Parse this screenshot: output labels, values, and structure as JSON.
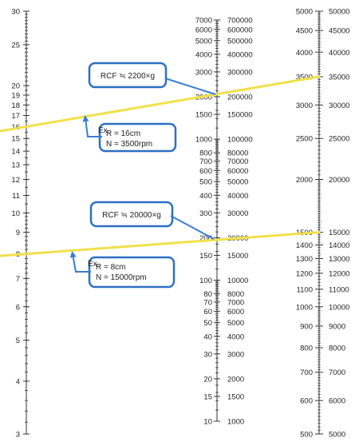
{
  "scale_radius": {
    "labels": [
      "30",
      "25",
      "20",
      "19",
      "18",
      "17",
      "16",
      "15",
      "14",
      "13",
      "12",
      "11",
      "10",
      "9",
      "8",
      "7",
      "6",
      "5",
      "4",
      "3"
    ],
    "values": [
      30,
      25,
      20,
      19,
      18,
      17,
      16,
      15,
      14,
      13,
      12,
      11,
      10,
      9,
      8,
      7,
      6,
      5,
      4,
      3
    ]
  },
  "scale_rcf": {
    "left_labels": [
      "7000",
      "6000",
      "5000",
      "4000",
      "3000",
      "2000",
      "1500",
      "1000",
      "800",
      "700",
      "600",
      "500",
      "400",
      "300",
      "200",
      "150",
      "100",
      "80",
      "70",
      "60",
      "50",
      "40",
      "30",
      "20",
      "15",
      "10"
    ],
    "right_labels": [
      "700000",
      "600000",
      "500000",
      "400000",
      "300000",
      "200000",
      "150000",
      "100000",
      "80000",
      "70000",
      "60000",
      "50000",
      "40000",
      "30000",
      "20000",
      "15000",
      "10000",
      "8000",
      "7000",
      "6000",
      "5000",
      "4000",
      "3000",
      "2000",
      "1500",
      "1000"
    ],
    "values": [
      7000,
      6000,
      5000,
      4000,
      3000,
      2000,
      1500,
      1000,
      800,
      700,
      600,
      500,
      400,
      300,
      200,
      150,
      100,
      80,
      70,
      60,
      50,
      40,
      30,
      20,
      15,
      10
    ]
  },
  "scale_rpm": {
    "left_labels": [
      "5000",
      "4500",
      "4000",
      "3500",
      "3000",
      "2500",
      "2000",
      "1500",
      "1400",
      "1300",
      "1200",
      "1100",
      "1000",
      "900",
      "800",
      "700",
      "600",
      "500"
    ],
    "left_values": [
      5000,
      4500,
      4000,
      3500,
      3000,
      2500,
      2000,
      1500,
      1400,
      1300,
      1200,
      1100,
      1000,
      900,
      800,
      700,
      600,
      500
    ],
    "right_labels": [
      "50000",
      "45000",
      "40000",
      "35000",
      "30000",
      "25000",
      "20000",
      "15000",
      "14000",
      "13000",
      "12000",
      "11000",
      "10000",
      "9000",
      "8000",
      "7000",
      "6000",
      "5000"
    ],
    "right_values": [
      50000,
      45000,
      40000,
      35000,
      30000,
      25000,
      20000,
      15000,
      14000,
      13000,
      12000,
      11000,
      10000,
      9000,
      8000,
      7000,
      6000,
      5000
    ]
  },
  "examples": [
    {
      "result": "RCF ≒ 2200×g",
      "ex_tag": "Ex.",
      "radius_text": "R = 16cm",
      "speed_text": "N = 3500rpm",
      "radius": 16,
      "rcf_low": 2200,
      "rpm_low": 3500
    },
    {
      "result": "RCF ≒ 20000×g",
      "ex_tag": "Ex.",
      "radius_text": "R = 8cm",
      "speed_text": "N = 15000rpm",
      "radius": 8,
      "rcf_low": 200,
      "rpm_low": 1500
    }
  ],
  "colors": {
    "axis": "#333333",
    "line": "#f0e04a",
    "callout_border": "#2e6fc4",
    "arrow": "#3a7bd5"
  }
}
